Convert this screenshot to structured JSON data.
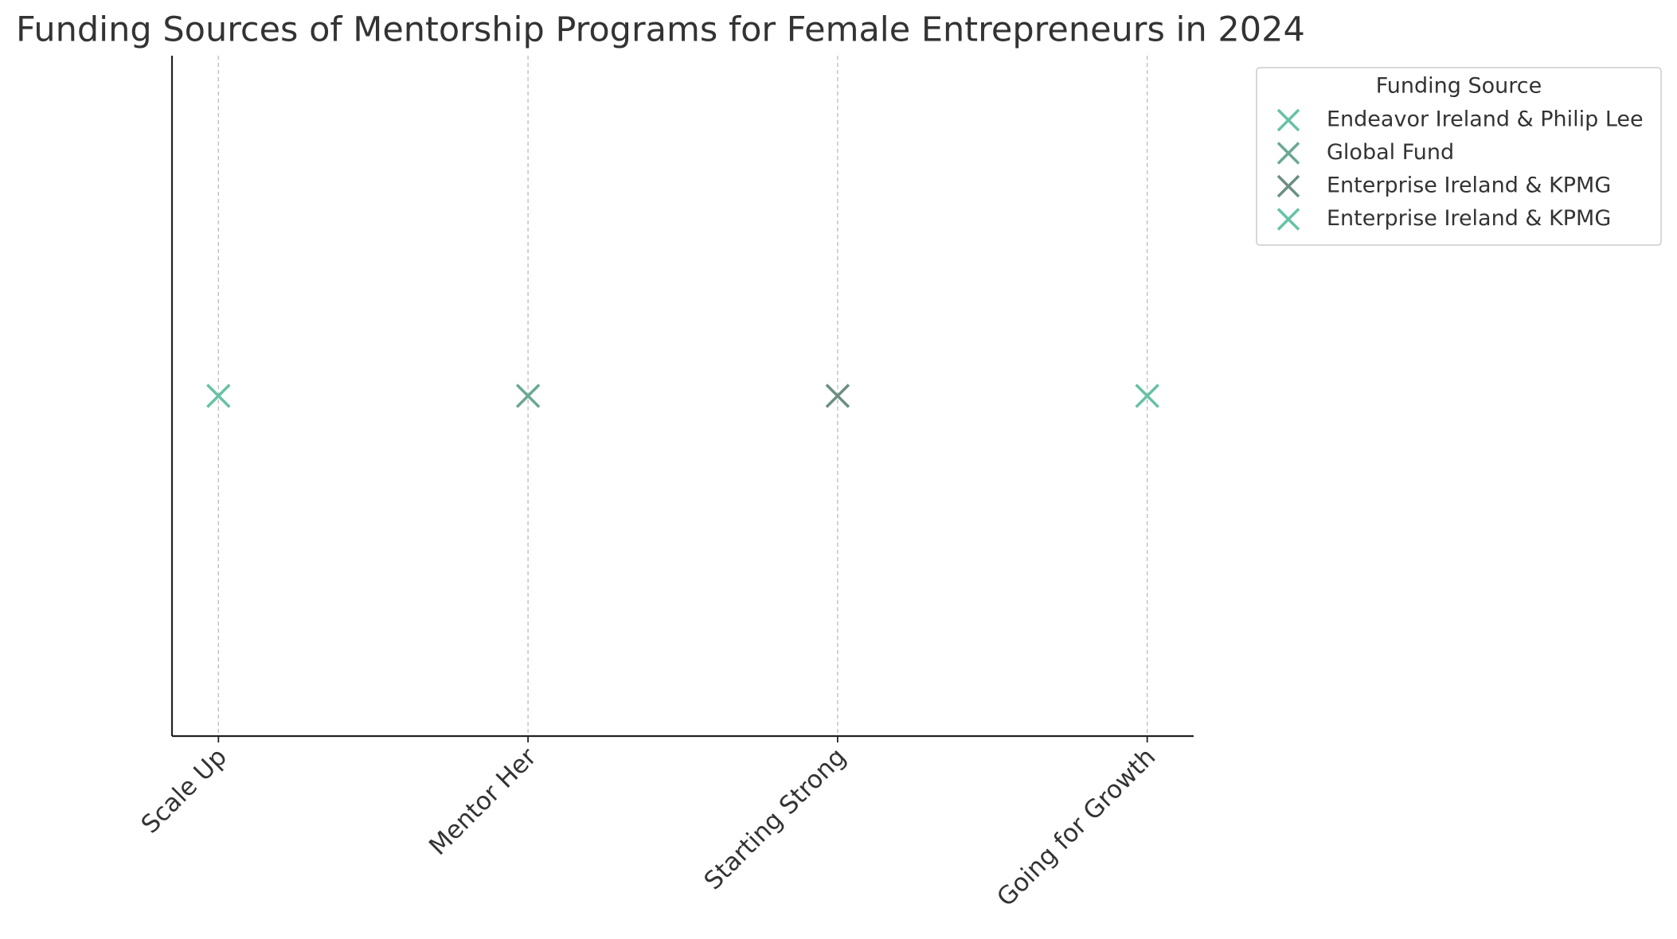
{
  "chart_data": {
    "type": "scatter",
    "title": "Funding Sources of Mentorship Programs for Female Entrepreneurs in 2024",
    "categories": [
      "Scale Up",
      "Mentor Her",
      "Starting Strong",
      "Going for Growth"
    ],
    "series": [
      {
        "name": "Endeavor Ireland & Philip Lee",
        "color": "#66c2a5",
        "values": [
          1,
          null,
          null,
          null
        ]
      },
      {
        "name": "Global Fund",
        "color": "#6aa891",
        "values": [
          null,
          1,
          null,
          null
        ]
      },
      {
        "name": "Enterprise Ireland & KPMG",
        "color": "#6b8f82",
        "values": [
          null,
          null,
          1,
          null
        ]
      },
      {
        "name": "Enterprise Ireland & KPMG",
        "color": "#66c2a5",
        "values": [
          null,
          null,
          null,
          1
        ]
      }
    ],
    "ylim": [
      0.945,
      1.055
    ],
    "legend_title": "Funding Source",
    "legend_position": "outside-upper-right",
    "grid": true
  }
}
